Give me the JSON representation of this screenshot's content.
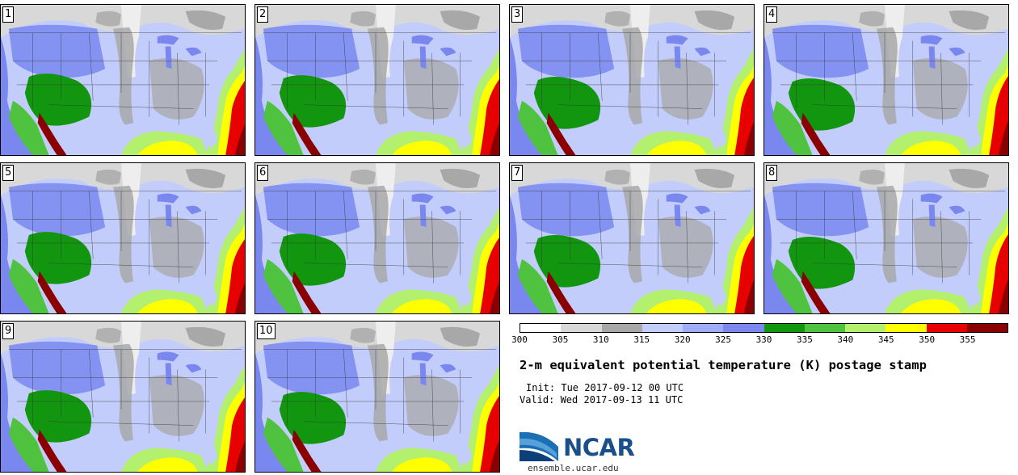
{
  "figure": {
    "title": "2-m equivalent potential temperature (K) postage stamp",
    "init": "Init: Tue 2017-09-12 00 UTC",
    "valid": "Valid: Wed 2017-09-13 11 UTC",
    "logo_text": "NCAR",
    "site": "ensemble.ucar.edu"
  },
  "panels": [
    {
      "label": "1"
    },
    {
      "label": "2"
    },
    {
      "label": "3"
    },
    {
      "label": "4"
    },
    {
      "label": "5"
    },
    {
      "label": "6"
    },
    {
      "label": "7"
    },
    {
      "label": "8"
    },
    {
      "label": "9"
    },
    {
      "label": "10"
    }
  ],
  "colorbar": {
    "units": "K",
    "tick_labels": [
      "300",
      "305",
      "310",
      "315",
      "320",
      "325",
      "330",
      "335",
      "340",
      "345",
      "350",
      "355"
    ],
    "colors": [
      "#ffffff",
      "#d8d8d8",
      "#a8a8a8",
      "#c3cdfb",
      "#9eadf6",
      "#7987ee",
      "#12960f",
      "#4fc33f",
      "#b2f06e",
      "#ffff00",
      "#e60000",
      "#8a0000"
    ]
  },
  "map_palette": {
    "gray": "#a8a8a8",
    "light_gray": "#d8d8d8",
    "light_blue": "#c3cdfb",
    "blue": "#9eadf6",
    "dark_blue": "#7987ee",
    "dark_green": "#12960f",
    "green": "#4fc33f",
    "light_green": "#b2f06e",
    "yellow": "#ffff00",
    "red": "#e60000",
    "dark_red": "#8a0000"
  }
}
